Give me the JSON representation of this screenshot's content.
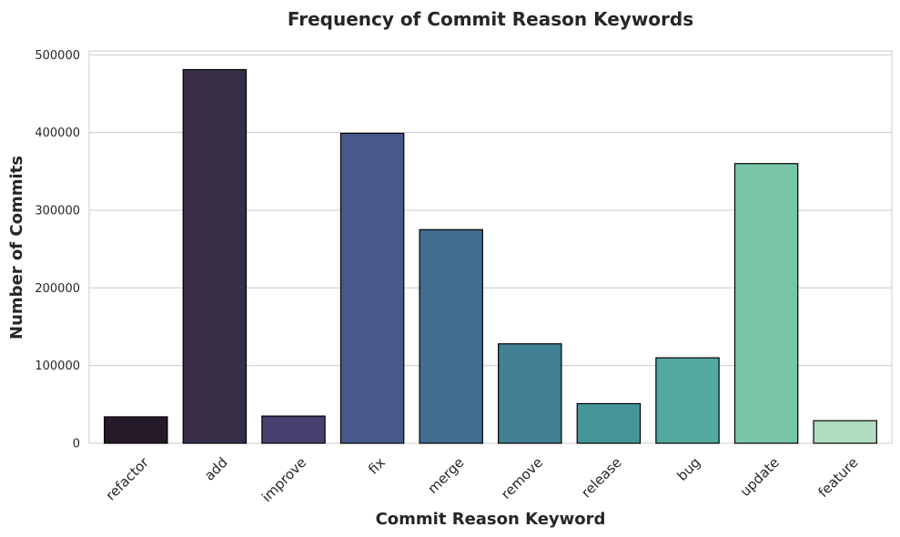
{
  "chart_data": {
    "type": "bar",
    "title": "Frequency of Commit Reason Keywords",
    "xlabel": "Commit Reason Keyword",
    "ylabel": "Number of Commits",
    "categories": [
      "refactor",
      "add",
      "improve",
      "fix",
      "merge",
      "remove",
      "release",
      "bug",
      "update",
      "feature"
    ],
    "values": [
      34000,
      481000,
      35000,
      399000,
      275000,
      128000,
      51000,
      110000,
      360000,
      29000
    ],
    "colors": [
      "#241a29",
      "#372d47",
      "#48406f",
      "#47598a",
      "#426c90",
      "#428193",
      "#459699",
      "#52aaa0",
      "#79c6a7",
      "#b2dcc0"
    ],
    "ylim": [
      0,
      505000
    ],
    "yticks": [
      0,
      100000,
      200000,
      300000,
      400000,
      500000
    ],
    "ytick_labels": [
      "0",
      "100000",
      "200000",
      "300000",
      "400000",
      "500000"
    ],
    "grid": true,
    "bar_edge_color": "#000000",
    "grid_color": "#cccccc",
    "spine_color": "#cccccc",
    "text_color": "#262626"
  }
}
